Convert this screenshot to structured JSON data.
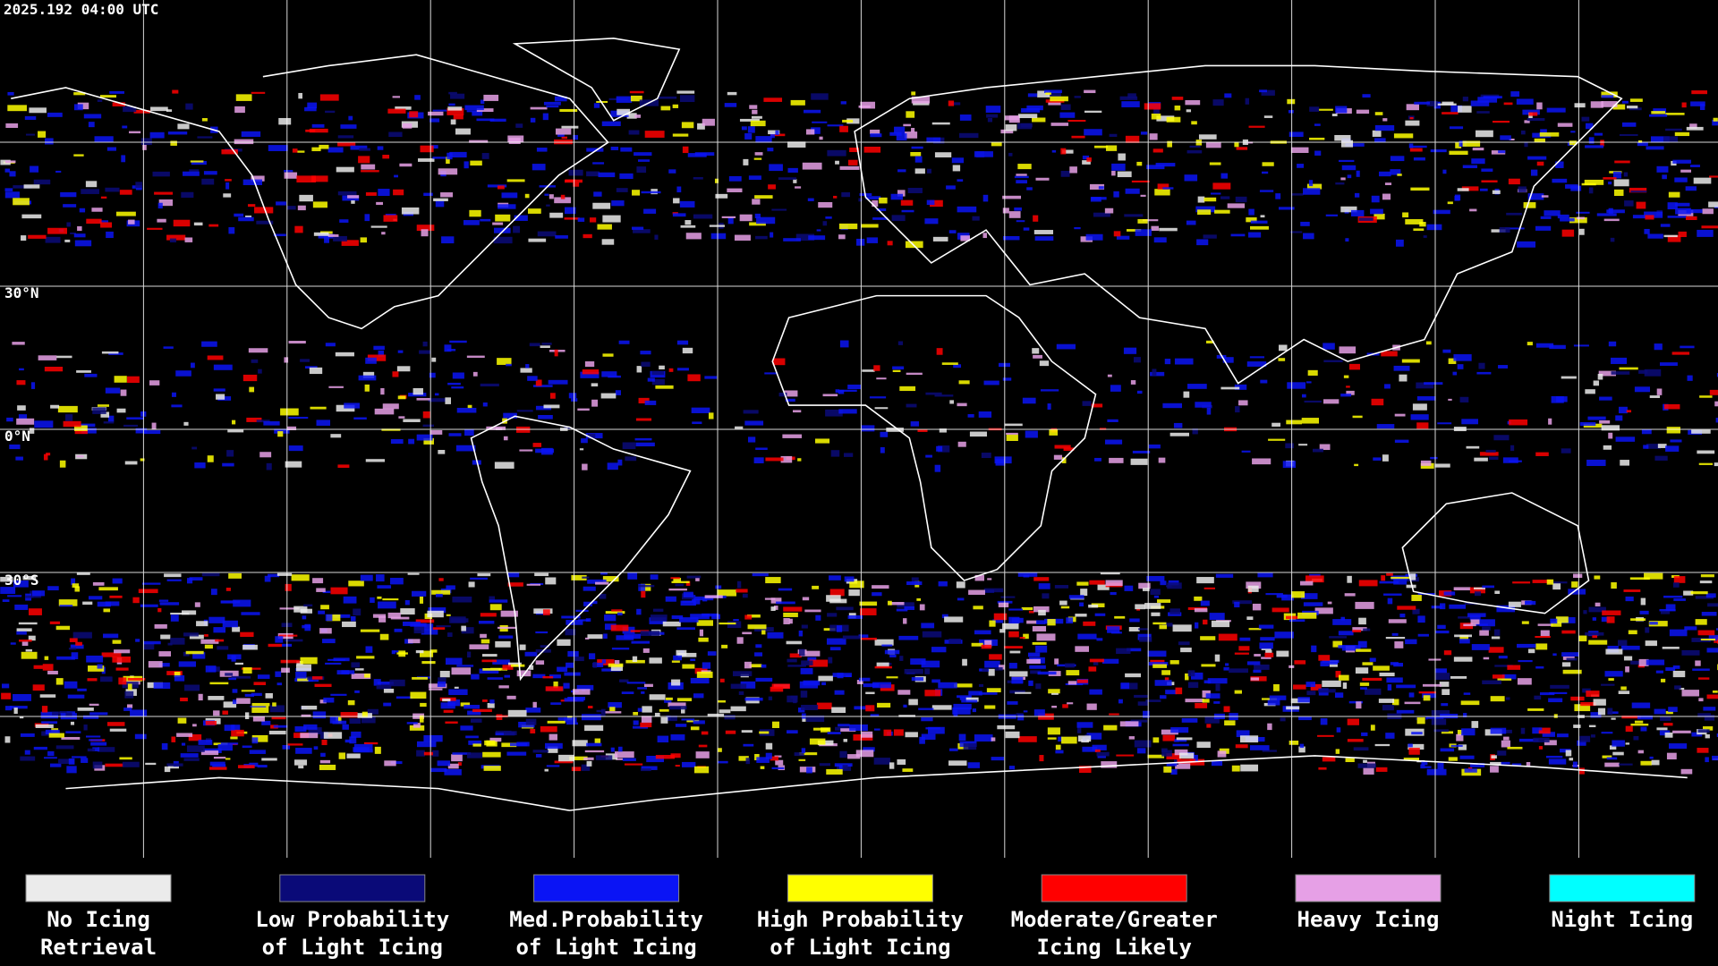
{
  "header": {
    "timestamp": "2025.192 04:00 UTC"
  },
  "map": {
    "latitude_labels": [
      "30°N",
      "0°N",
      "30°S"
    ]
  },
  "legend": [
    {
      "label_lines": [
        "No Icing",
        "Retrieval"
      ],
      "color": "#ebebeb"
    },
    {
      "label_lines": [
        "Low Probability",
        "of Light Icing"
      ],
      "color": "#0a0a78"
    },
    {
      "label_lines": [
        "Med.Probability",
        "of Light Icing"
      ],
      "color": "#0a14f5"
    },
    {
      "label_lines": [
        "High Probability",
        "of Light Icing"
      ],
      "color": "#ffff00"
    },
    {
      "label_lines": [
        "Moderate/Greater",
        "Icing Likely"
      ],
      "color": "#ff0000"
    },
    {
      "label_lines": [
        "Heavy Icing"
      ],
      "color": "#e6a0e6"
    },
    {
      "label_lines": [
        "Night Icing"
      ],
      "color": "#00ffff"
    }
  ]
}
